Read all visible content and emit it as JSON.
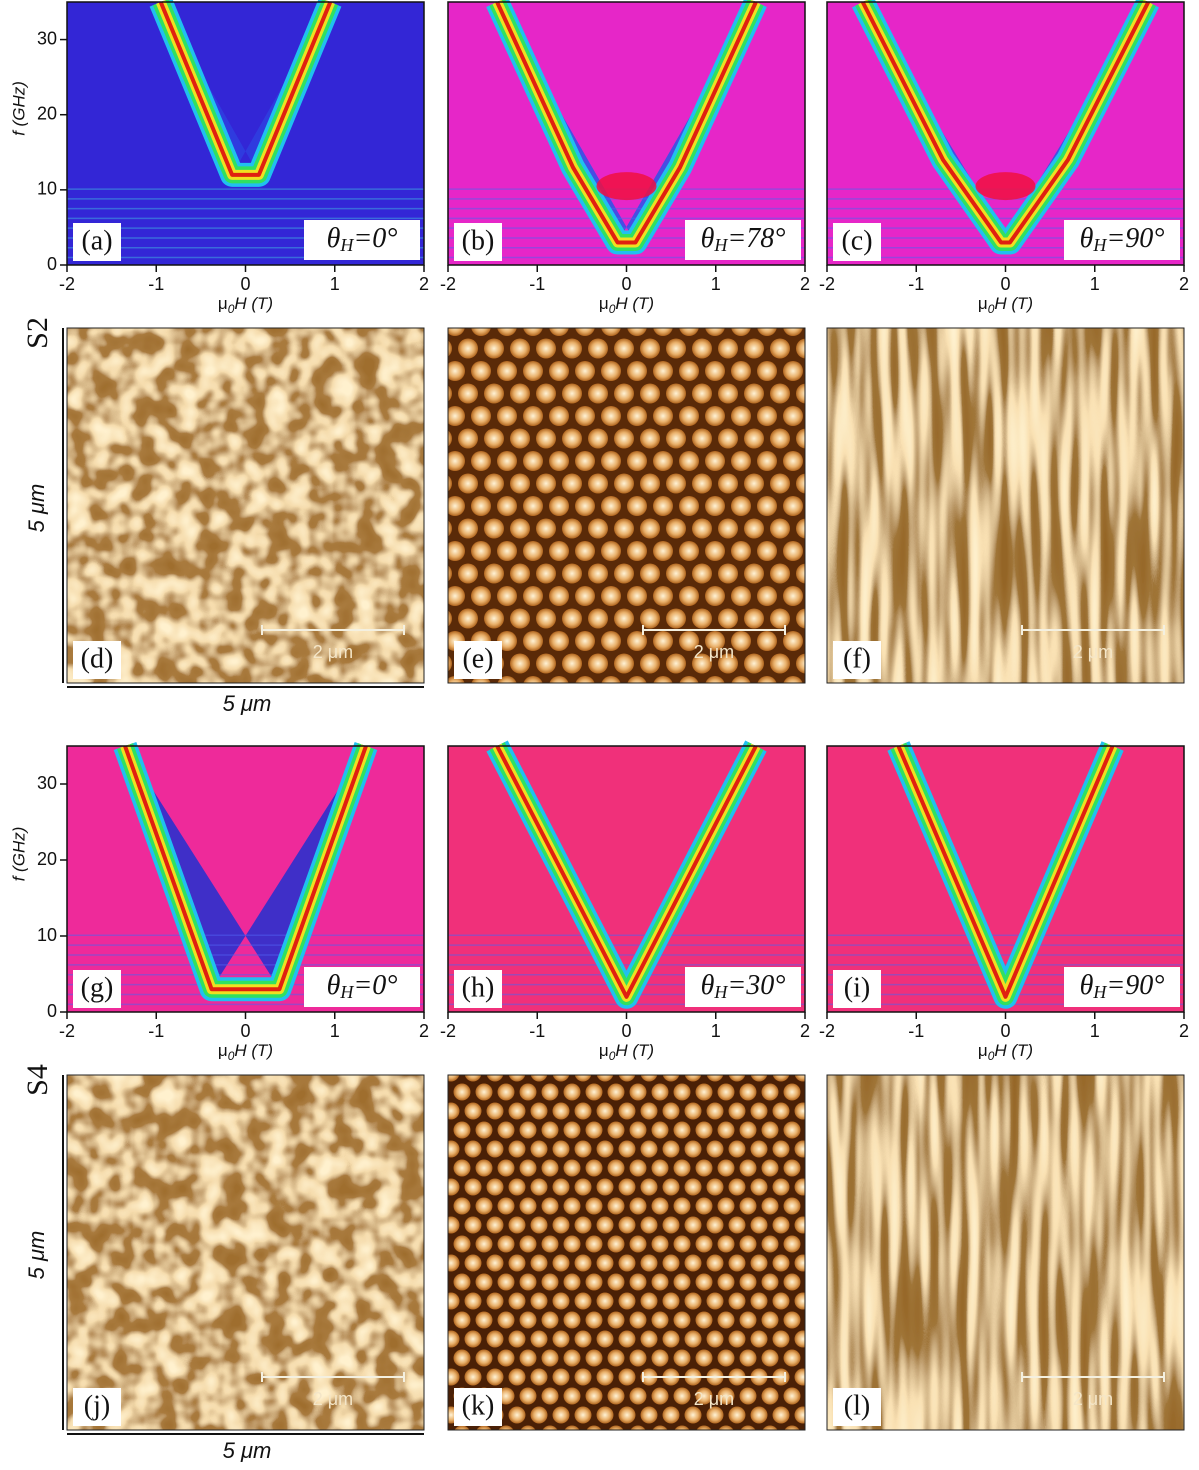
{
  "figure": {
    "groups": [
      {
        "sample": "S2",
        "height_label": "5 μm",
        "width_label": "5 μm",
        "spectra": [
          {
            "label": "(a)",
            "angle": {
              "symbol": "θ",
              "sub": "H",
              "text": "=0°"
            },
            "xticks": [
              -2,
              -1,
              0,
              1,
              2
            ],
            "xlabel": {
              "symbol": "μ",
              "sub": "0",
              "text": "H (T)"
            },
            "yticks": [
              0,
              10,
              20,
              30
            ],
            "ylim": [
              0,
              35
            ],
            "ylabel": "f (GHz)"
          },
          {
            "label": "(b)",
            "angle": {
              "symbol": "θ",
              "sub": "H",
              "text": "=78°"
            },
            "xticks": [
              -2,
              -1,
              0,
              1,
              2
            ],
            "xlabel": {
              "symbol": "μ",
              "sub": "0",
              "text": "H (T)"
            }
          },
          {
            "label": "(c)",
            "angle": {
              "symbol": "θ",
              "sub": "H",
              "text": "=90°"
            },
            "xticks": [
              -2,
              -1,
              0,
              1,
              2
            ],
            "xlabel": {
              "symbol": "μ",
              "sub": "0",
              "text": "H (T)"
            }
          }
        ],
        "images": [
          {
            "label": "(d)",
            "scale_bar": "2 μm"
          },
          {
            "label": "(e)",
            "scale_bar": "2 μm"
          },
          {
            "label": "(f)",
            "scale_bar": "2 μm"
          }
        ]
      },
      {
        "sample": "S4",
        "height_label": "5 μm",
        "width_label": "5 μm",
        "spectra": [
          {
            "label": "(g)",
            "angle": {
              "symbol": "θ",
              "sub": "H",
              "text": "=0°"
            },
            "xticks": [
              -2,
              -1,
              0,
              1,
              2
            ],
            "xlabel": {
              "symbol": "μ",
              "sub": "0",
              "text": "H (T)"
            },
            "yticks": [
              0,
              10,
              20,
              30
            ],
            "ylim": [
              0,
              35
            ],
            "ylabel": "f (GHz)"
          },
          {
            "label": "(h)",
            "angle": {
              "symbol": "θ",
              "sub": "H",
              "text": "=30°"
            },
            "xticks": [
              -2,
              -1,
              0,
              1,
              2
            ],
            "xlabel": {
              "symbol": "μ",
              "sub": "0",
              "text": "H (T)"
            }
          },
          {
            "label": "(i)",
            "angle": {
              "symbol": "θ",
              "sub": "H",
              "text": "=90°"
            },
            "xticks": [
              -2,
              -1,
              0,
              1,
              2
            ],
            "xlabel": {
              "symbol": "μ",
              "sub": "0",
              "text": "H (T)"
            }
          }
        ],
        "images": [
          {
            "label": "(j)",
            "scale_bar": "2 μm"
          },
          {
            "label": "(k)",
            "scale_bar": "2 μm"
          },
          {
            "label": "(l)",
            "scale_bar": "2 μm"
          }
        ]
      }
    ]
  }
}
